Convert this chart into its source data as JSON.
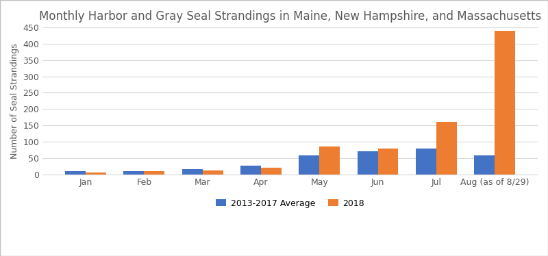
{
  "title": "Monthly Harbor and Gray Seal Strandings in Maine, New Hampshire, and Massachusetts",
  "categories": [
    "Jan",
    "Feb",
    "Mar",
    "Apr",
    "May",
    "Jun",
    "Jul",
    "Aug (as of 8/29)"
  ],
  "avg_2013_2017": [
    10,
    10,
    17,
    27,
    59,
    70,
    79,
    58
  ],
  "values_2018": [
    6,
    10,
    11,
    20,
    85,
    80,
    160,
    440
  ],
  "ylabel": "Number of Seal Strandings",
  "legend_avg": "2013-2017 Average",
  "legend_2018": "2018",
  "color_avg": "#4472C4",
  "color_2018": "#ED7D31",
  "ylim": [
    0,
    450
  ],
  "yticks": [
    0,
    50,
    100,
    150,
    200,
    250,
    300,
    350,
    400,
    450
  ],
  "bar_width": 0.35,
  "title_fontsize": 12,
  "axis_fontsize": 9,
  "tick_fontsize": 9,
  "legend_fontsize": 9,
  "title_color": "#595959",
  "tick_color": "#595959",
  "background_color": "#ffffff",
  "plot_bg_color": "#ffffff",
  "grid_color": "#d9d9d9",
  "border_color": "#bfbfbf"
}
